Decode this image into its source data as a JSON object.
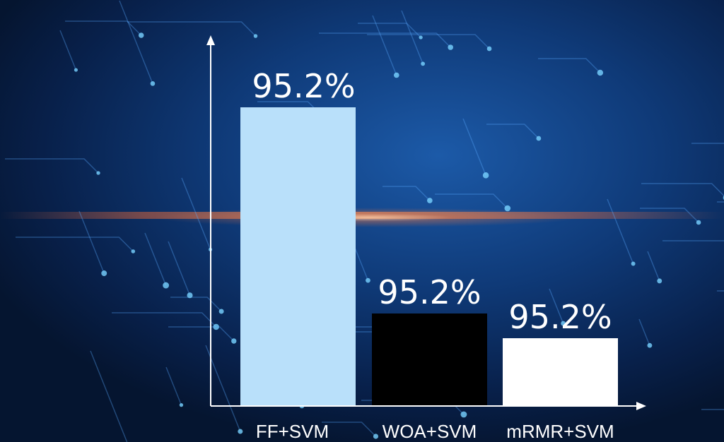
{
  "chart_data": {
    "type": "bar",
    "categories": [
      "FF+SVM",
      "WOA+SVM",
      "mRMR+SVM"
    ],
    "values": [
      95.2,
      95.2,
      95.2
    ],
    "value_labels": [
      "95.2%",
      "95.2%",
      "95.2%"
    ],
    "bar_colors": [
      "#b9e0fa",
      "#000000",
      "#ffffff"
    ],
    "title": "",
    "xlabel": "",
    "ylabel": "",
    "grid": false,
    "legend": "none"
  },
  "colors": {
    "background": "#0f3a78",
    "axis": "#ffffff"
  }
}
